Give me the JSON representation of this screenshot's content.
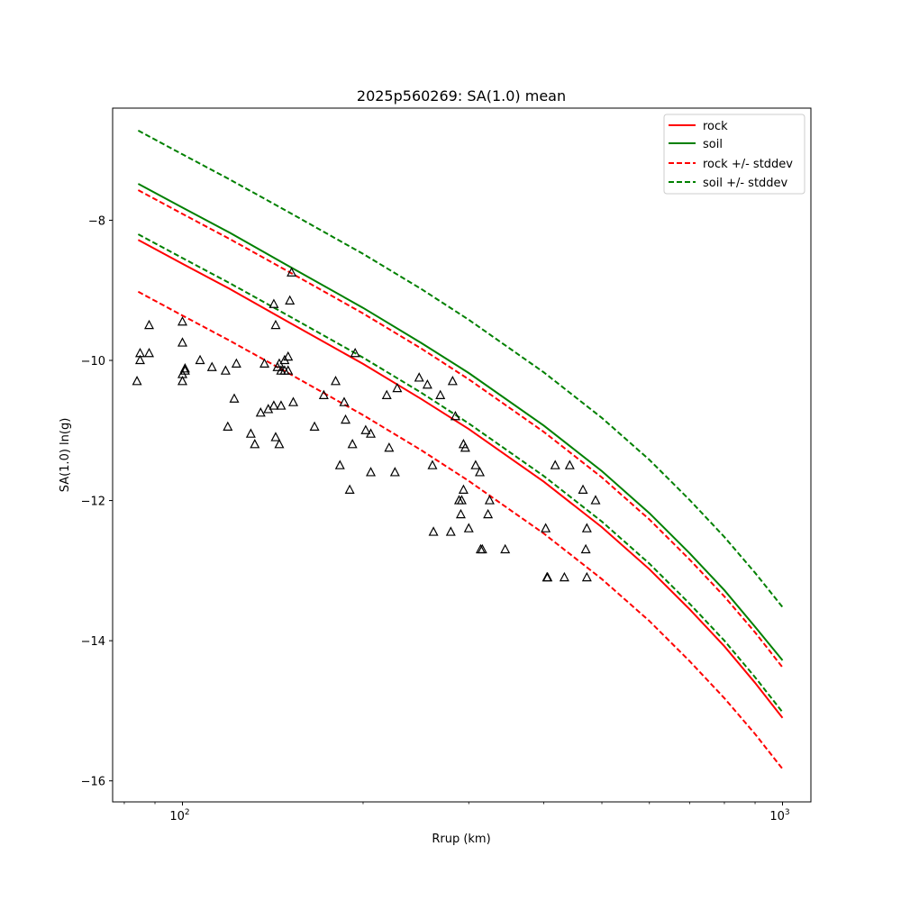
{
  "chart_data": {
    "type": "scatter",
    "title": "2025p560269: SA(1.0) mean",
    "xlabel": "Rrup (km)",
    "ylabel": "SA(1.0) ln(g)",
    "xscale": "log",
    "xlim": [
      76.5,
      1115
    ],
    "ylim": [
      -16.3,
      -6.4
    ],
    "x_major_ticks": [
      {
        "value": 100,
        "base": "10",
        "exp": "2"
      },
      {
        "value": 1000,
        "base": "10",
        "exp": "3"
      }
    ],
    "y_ticks": [
      {
        "value": -8,
        "label": "−8"
      },
      {
        "value": -10,
        "label": "−10"
      },
      {
        "value": -12,
        "label": "−12"
      },
      {
        "value": -14,
        "label": "−14"
      },
      {
        "value": -16,
        "label": "−16"
      }
    ],
    "legend_position": "top-right",
    "grid": false,
    "series": [
      {
        "name": "rock",
        "kind": "line",
        "color": "#ff0000",
        "dashed": false,
        "x": [
          84.4,
          100,
          120,
          150,
          200,
          250,
          300,
          400,
          500,
          600,
          700,
          800,
          900,
          1000
        ],
        "y": [
          -8.28,
          -8.62,
          -8.98,
          -9.45,
          -10.05,
          -10.55,
          -10.98,
          -11.73,
          -12.38,
          -12.98,
          -13.55,
          -14.08,
          -14.6,
          -15.1
        ]
      },
      {
        "name": "soil",
        "kind": "line",
        "color": "#008000",
        "dashed": false,
        "x": [
          84.4,
          100,
          120,
          150,
          200,
          250,
          300,
          400,
          500,
          600,
          700,
          800,
          900,
          1000
        ],
        "y": [
          -7.48,
          -7.82,
          -8.18,
          -8.65,
          -9.25,
          -9.75,
          -10.18,
          -10.93,
          -11.58,
          -12.18,
          -12.75,
          -13.28,
          -13.8,
          -14.28
        ]
      },
      {
        "name": "rock +/- stddev",
        "kind": "line",
        "color": "#ff0000",
        "dashed": true,
        "x": [
          84.4,
          100,
          120,
          150,
          200,
          250,
          300,
          400,
          500,
          600,
          700,
          800,
          900,
          1000
        ],
        "y": [
          -7.57,
          -7.91,
          -8.27,
          -8.73,
          -9.33,
          -9.83,
          -10.27,
          -11.02,
          -11.67,
          -12.27,
          -12.84,
          -13.37,
          -13.88,
          -14.38
        ]
      },
      {
        "kind": "line",
        "color": "#ff0000",
        "dashed": true,
        "x": [
          84.4,
          100,
          120,
          150,
          200,
          250,
          300,
          400,
          500,
          600,
          700,
          800,
          900,
          1000
        ],
        "y": [
          -9.02,
          -9.36,
          -9.72,
          -10.18,
          -10.78,
          -11.28,
          -11.72,
          -12.47,
          -13.12,
          -13.72,
          -14.29,
          -14.82,
          -15.33,
          -15.83
        ]
      },
      {
        "name": "soil +/- stddev",
        "kind": "line",
        "color": "#008000",
        "dashed": true,
        "x": [
          84.4,
          100,
          120,
          150,
          200,
          250,
          300,
          400,
          500,
          600,
          700,
          800,
          900,
          1000
        ],
        "y": [
          -6.72,
          -7.06,
          -7.42,
          -7.88,
          -8.48,
          -8.98,
          -9.42,
          -10.17,
          -10.82,
          -11.42,
          -11.99,
          -12.52,
          -13.03,
          -13.52
        ]
      },
      {
        "kind": "line",
        "color": "#008000",
        "dashed": true,
        "x": [
          84.4,
          100,
          120,
          150,
          200,
          250,
          300,
          400,
          500,
          600,
          700,
          800,
          900,
          1000
        ],
        "y": [
          -8.2,
          -8.54,
          -8.9,
          -9.36,
          -9.96,
          -10.46,
          -10.9,
          -11.65,
          -12.3,
          -12.9,
          -13.47,
          -14.0,
          -14.52,
          -15.02
        ]
      },
      {
        "kind": "scatter",
        "marker": "triangle",
        "color": "#000000",
        "x": [
          84,
          85,
          85,
          88,
          88,
          100,
          100,
          100,
          100,
          101,
          101,
          107,
          112,
          118,
          119,
          122,
          123,
          130,
          132,
          135,
          137,
          139,
          142,
          142,
          143,
          143,
          144,
          145,
          145,
          146,
          146,
          148,
          148,
          150,
          150,
          151,
          152,
          153,
          166,
          172,
          180,
          183,
          186,
          187,
          190,
          192,
          194,
          202,
          206,
          206,
          219,
          221,
          226,
          228,
          248,
          256,
          261,
          262,
          269,
          280,
          282,
          285,
          289,
          291,
          292,
          294,
          294,
          296,
          300,
          308,
          313,
          314,
          316,
          323,
          325,
          345,
          403,
          405,
          406,
          418,
          433,
          442,
          465,
          470,
          472,
          472,
          488
        ],
        "y": [
          -10.3,
          -9.9,
          -10.0,
          -9.5,
          -9.9,
          -9.75,
          -9.45,
          -10.3,
          -10.2,
          -10.15,
          -10.12,
          -10.0,
          -10.1,
          -10.15,
          -10.95,
          -10.55,
          -10.05,
          -11.05,
          -11.2,
          -10.75,
          -10.05,
          -10.7,
          -10.65,
          -9.2,
          -9.5,
          -11.1,
          -10.1,
          -10.05,
          -11.2,
          -10.15,
          -10.65,
          -10.0,
          -10.15,
          -9.95,
          -10.15,
          -9.15,
          -8.75,
          -10.6,
          -10.95,
          -10.5,
          -10.3,
          -11.5,
          -10.6,
          -10.85,
          -11.85,
          -11.2,
          -9.9,
          -11.0,
          -11.05,
          -11.6,
          -10.5,
          -11.25,
          -11.6,
          -10.4,
          -10.25,
          -10.35,
          -11.5,
          -12.45,
          -10.5,
          -12.45,
          -10.3,
          -10.8,
          -12.0,
          -12.2,
          -12.0,
          -11.2,
          -11.85,
          -11.25,
          -12.4,
          -11.5,
          -11.6,
          -12.7,
          -12.7,
          -12.2,
          -12.0,
          -12.7,
          -12.4,
          -13.1,
          -13.1,
          -11.5,
          -13.1,
          -11.5,
          -11.85,
          -12.7,
          -13.1,
          -12.4,
          -12.0
        ]
      }
    ]
  }
}
